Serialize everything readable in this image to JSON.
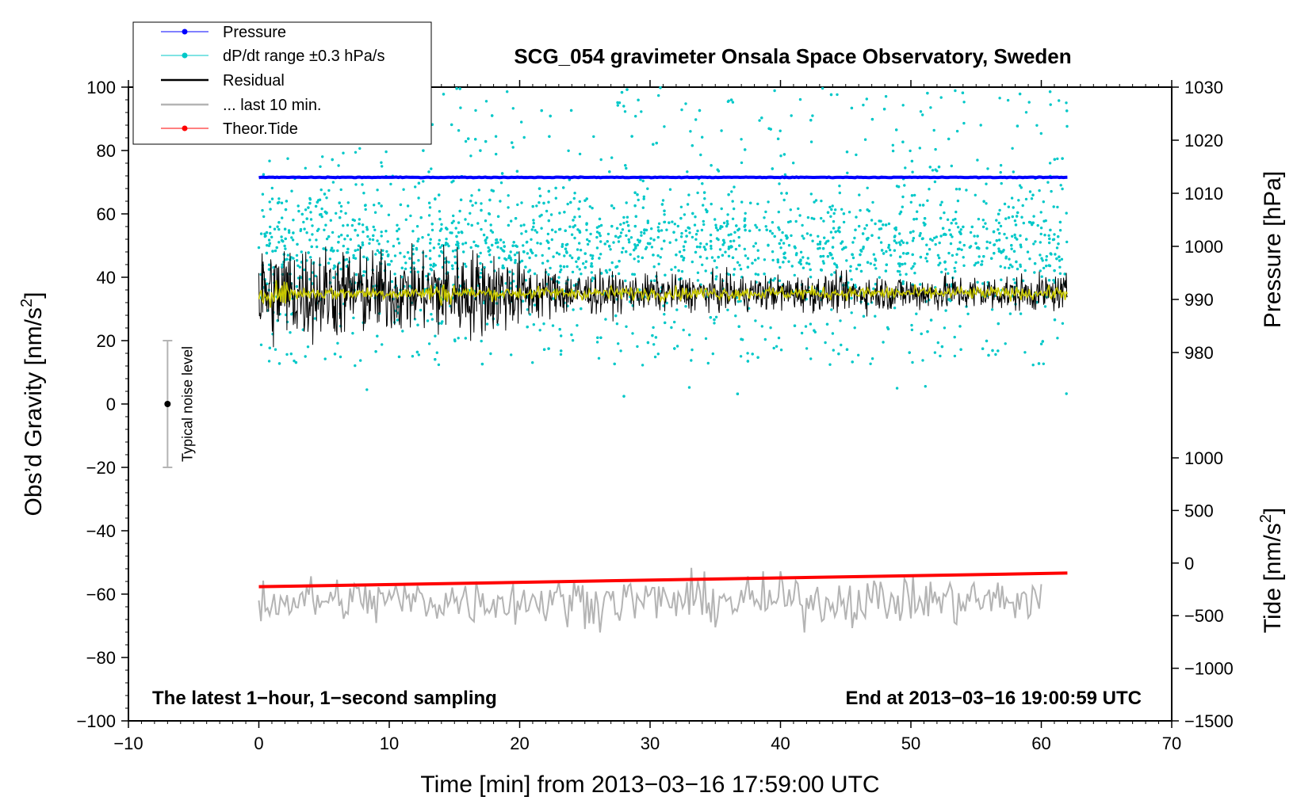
{
  "chart_data": {
    "type": "line",
    "title": "SCG_054 gravimeter Onsala Space Observatory, Sweden",
    "xlabel": "Time [min] from 2013−03−16 17:59:00 UTC",
    "ylabel_left": "Obs’d Gravity [nm/s",
    "ylabel_left_sup": "2",
    "ylabel_left_end": "]",
    "ylabel_right_pressure": "Pressure [hPa]",
    "ylabel_right_tide": "Tide [nm/s",
    "ylabel_right_tide_sup": "2",
    "ylabel_right_tide_end": "]",
    "xlim": [
      -10,
      70
    ],
    "ylim_left": [
      -100,
      100
    ],
    "pressure_range": [
      980,
      1030
    ],
    "tide_range": [
      -1500,
      1000
    ],
    "x_ticks": [
      "−10",
      "0",
      "10",
      "20",
      "30",
      "40",
      "50",
      "60",
      "70"
    ],
    "y_ticks_left": [
      "100",
      "80",
      "60",
      "40",
      "20",
      "0",
      "−20",
      "−40",
      "−60",
      "−80",
      "−100"
    ],
    "y_ticks_pressure": [
      "1030",
      "1020",
      "1010",
      "1000",
      "990",
      "980"
    ],
    "y_ticks_tide": [
      "1000",
      "500",
      "0",
      "−500",
      "−1000",
      "−1500"
    ],
    "legend": [
      "Pressure",
      "dP/dt range ±0.3 hPa/s",
      "Residual",
      "... last 10 min.",
      "Theor.Tide"
    ],
    "annotation_left": "The latest 1−hour, 1−second sampling",
    "annotation_right": "End at 2013−03−16 19:00:59 UTC",
    "noise_label": "Typical noise level",
    "noise_bar": {
      "x": -7,
      "center": 0,
      "low": -20,
      "high": 20
    },
    "series": [
      {
        "name": "Pressure",
        "axis": "pressure",
        "unit": "hPa",
        "x_start": 0,
        "x_end": 62,
        "y_start": 1013,
        "y_end": 1013
      },
      {
        "name": "dP/dt range ±0.3 hPa/s",
        "axis": "left",
        "x_start": 0,
        "x_end": 62,
        "band_center": 50,
        "band_spread": 8,
        "outlier_min": 2,
        "outlier_max": 100
      },
      {
        "name": "Residual",
        "axis": "left",
        "x_start": 0,
        "x_end": 62,
        "mean": 35,
        "amplitude_start": 15,
        "amplitude_end": 5
      },
      {
        "name": "Residual (smoothed)",
        "axis": "left",
        "x_start": 0,
        "x_end": 62,
        "mean": 35,
        "amplitude": 2
      },
      {
        "name": "... last 10 min.",
        "axis": "left",
        "x_start": 0,
        "x_end": 60,
        "mean": -62,
        "amplitude": 5
      },
      {
        "name": "Theor.Tide",
        "axis": "tide",
        "unit": "nm/s2",
        "x_start": 0,
        "x_end": 62,
        "y_start": -225,
        "y_end": -95
      }
    ],
    "colors": {
      "pressure": "#0000ff",
      "dpdt": "#00c8c8",
      "residual": "#000000",
      "smoothed": "#c8c800",
      "last10": "#b4b4b4",
      "tide": "#ff0000"
    }
  }
}
